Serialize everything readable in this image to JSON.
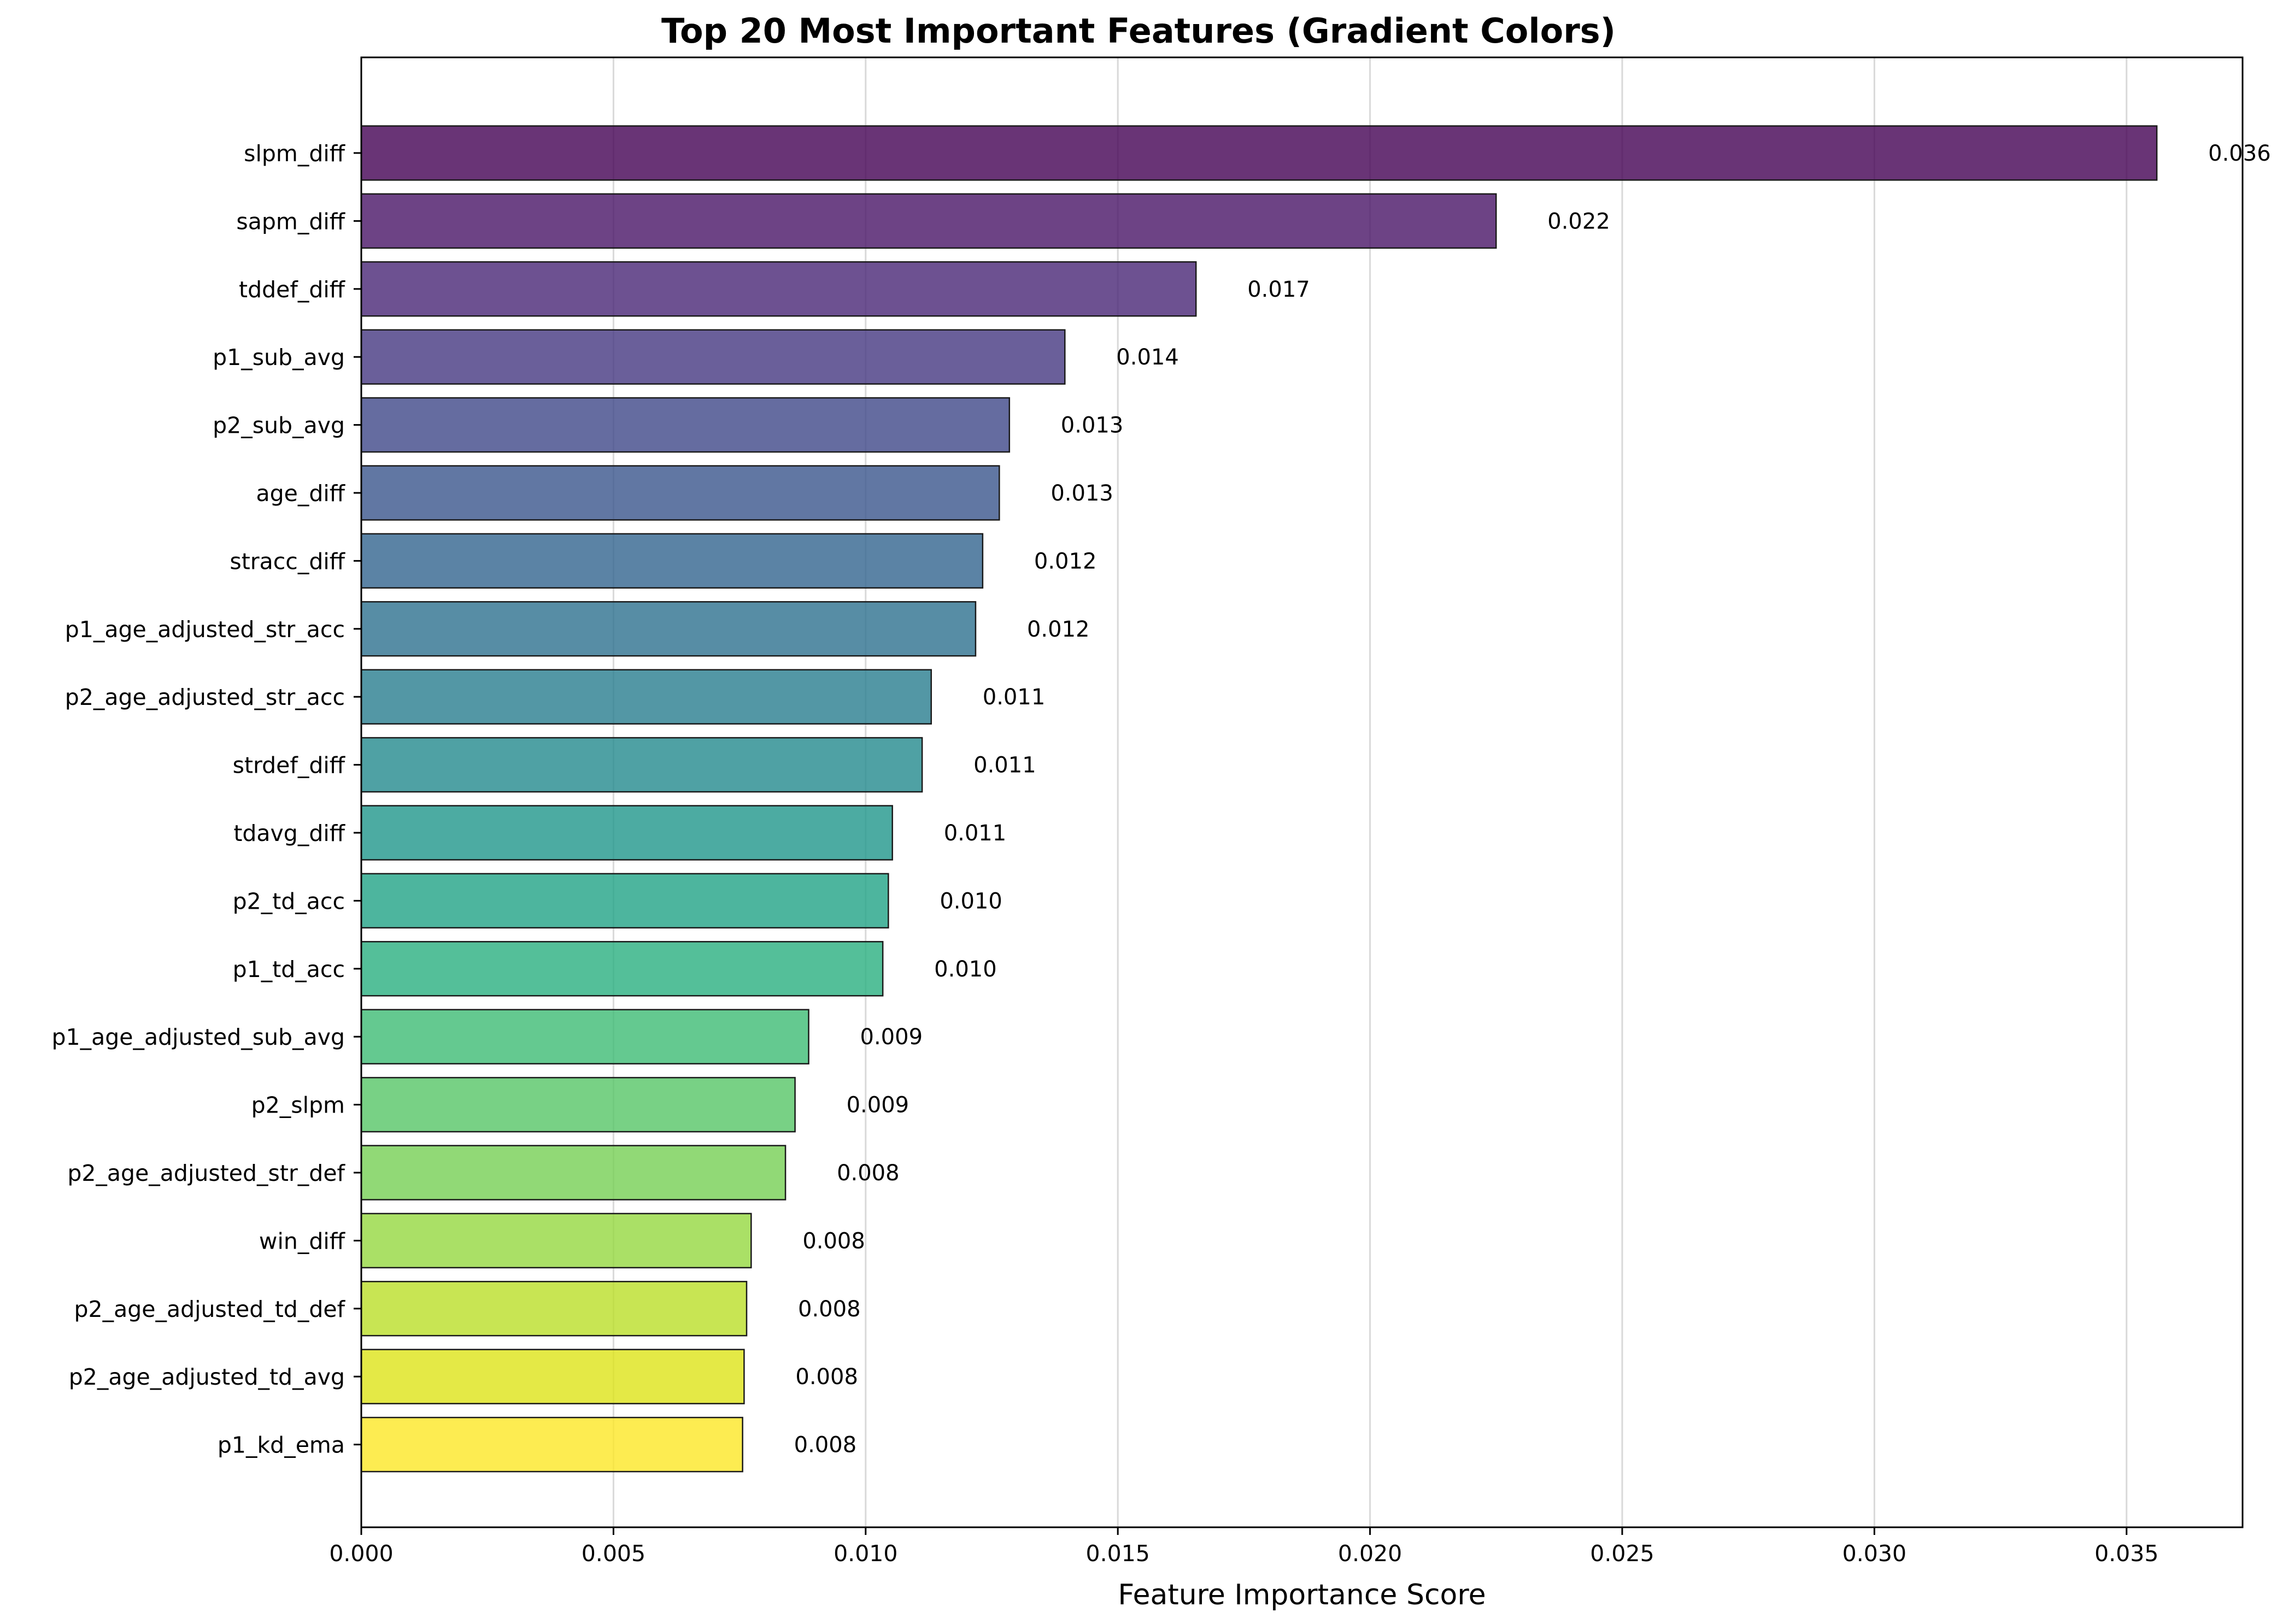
{
  "chart_data": {
    "type": "bar",
    "orientation": "horizontal",
    "title": "Top 20 Most Important Features (Gradient Colors)",
    "xlabel": "Feature Importance Score",
    "ylabel": "",
    "xlim": [
      0,
      0.0373
    ],
    "xticks": [
      0.0,
      0.005,
      0.01,
      0.015,
      0.02,
      0.025,
      0.03,
      0.035
    ],
    "xtick_labels": [
      "0.000",
      "0.005",
      "0.010",
      "0.015",
      "0.020",
      "0.025",
      "0.030",
      "0.035"
    ],
    "grid": "vertical",
    "colormap": "viridis",
    "categories": [
      "slpm_diff",
      "sapm_diff",
      "tddef_diff",
      "p1_sub_avg",
      "p2_sub_avg",
      "age_diff",
      "stracc_diff",
      "p1_age_adjusted_str_acc",
      "p2_age_adjusted_str_acc",
      "strdef_diff",
      "tdavg_diff",
      "p2_td_acc",
      "p1_td_acc",
      "p1_age_adjusted_sub_avg",
      "p2_slpm",
      "p2_age_adjusted_str_def",
      "win_diff",
      "p2_age_adjusted_td_def",
      "p2_age_adjusted_td_avg",
      "p1_kd_ema"
    ],
    "values": [
      0.0356,
      0.0225,
      0.01655,
      0.01395,
      0.01285,
      0.01265,
      0.01232,
      0.01218,
      0.0113,
      0.01112,
      0.01053,
      0.01045,
      0.01034,
      0.00887,
      0.0086,
      0.00841,
      0.00773,
      0.00764,
      0.00759,
      0.00756
    ],
    "value_labels": [
      "0.036",
      "0.022",
      "0.017",
      "0.014",
      "0.013",
      "0.013",
      "0.012",
      "0.012",
      "0.011",
      "0.011",
      "0.011",
      "0.010",
      "0.010",
      "0.009",
      "0.009",
      "0.008",
      "0.008",
      "0.008",
      "0.008",
      "0.008"
    ],
    "colors": [
      "#440154",
      "#481467",
      "#482576",
      "#453781",
      "#3f4788",
      "#39558c",
      "#32648e",
      "#2d718e",
      "#287d8e",
      "#238a8d",
      "#1f968b",
      "#20a386",
      "#29af7f",
      "#3dbc74",
      "#56c667",
      "#75d054",
      "#95d840",
      "#bade28",
      "#dde318",
      "#fde725"
    ]
  }
}
